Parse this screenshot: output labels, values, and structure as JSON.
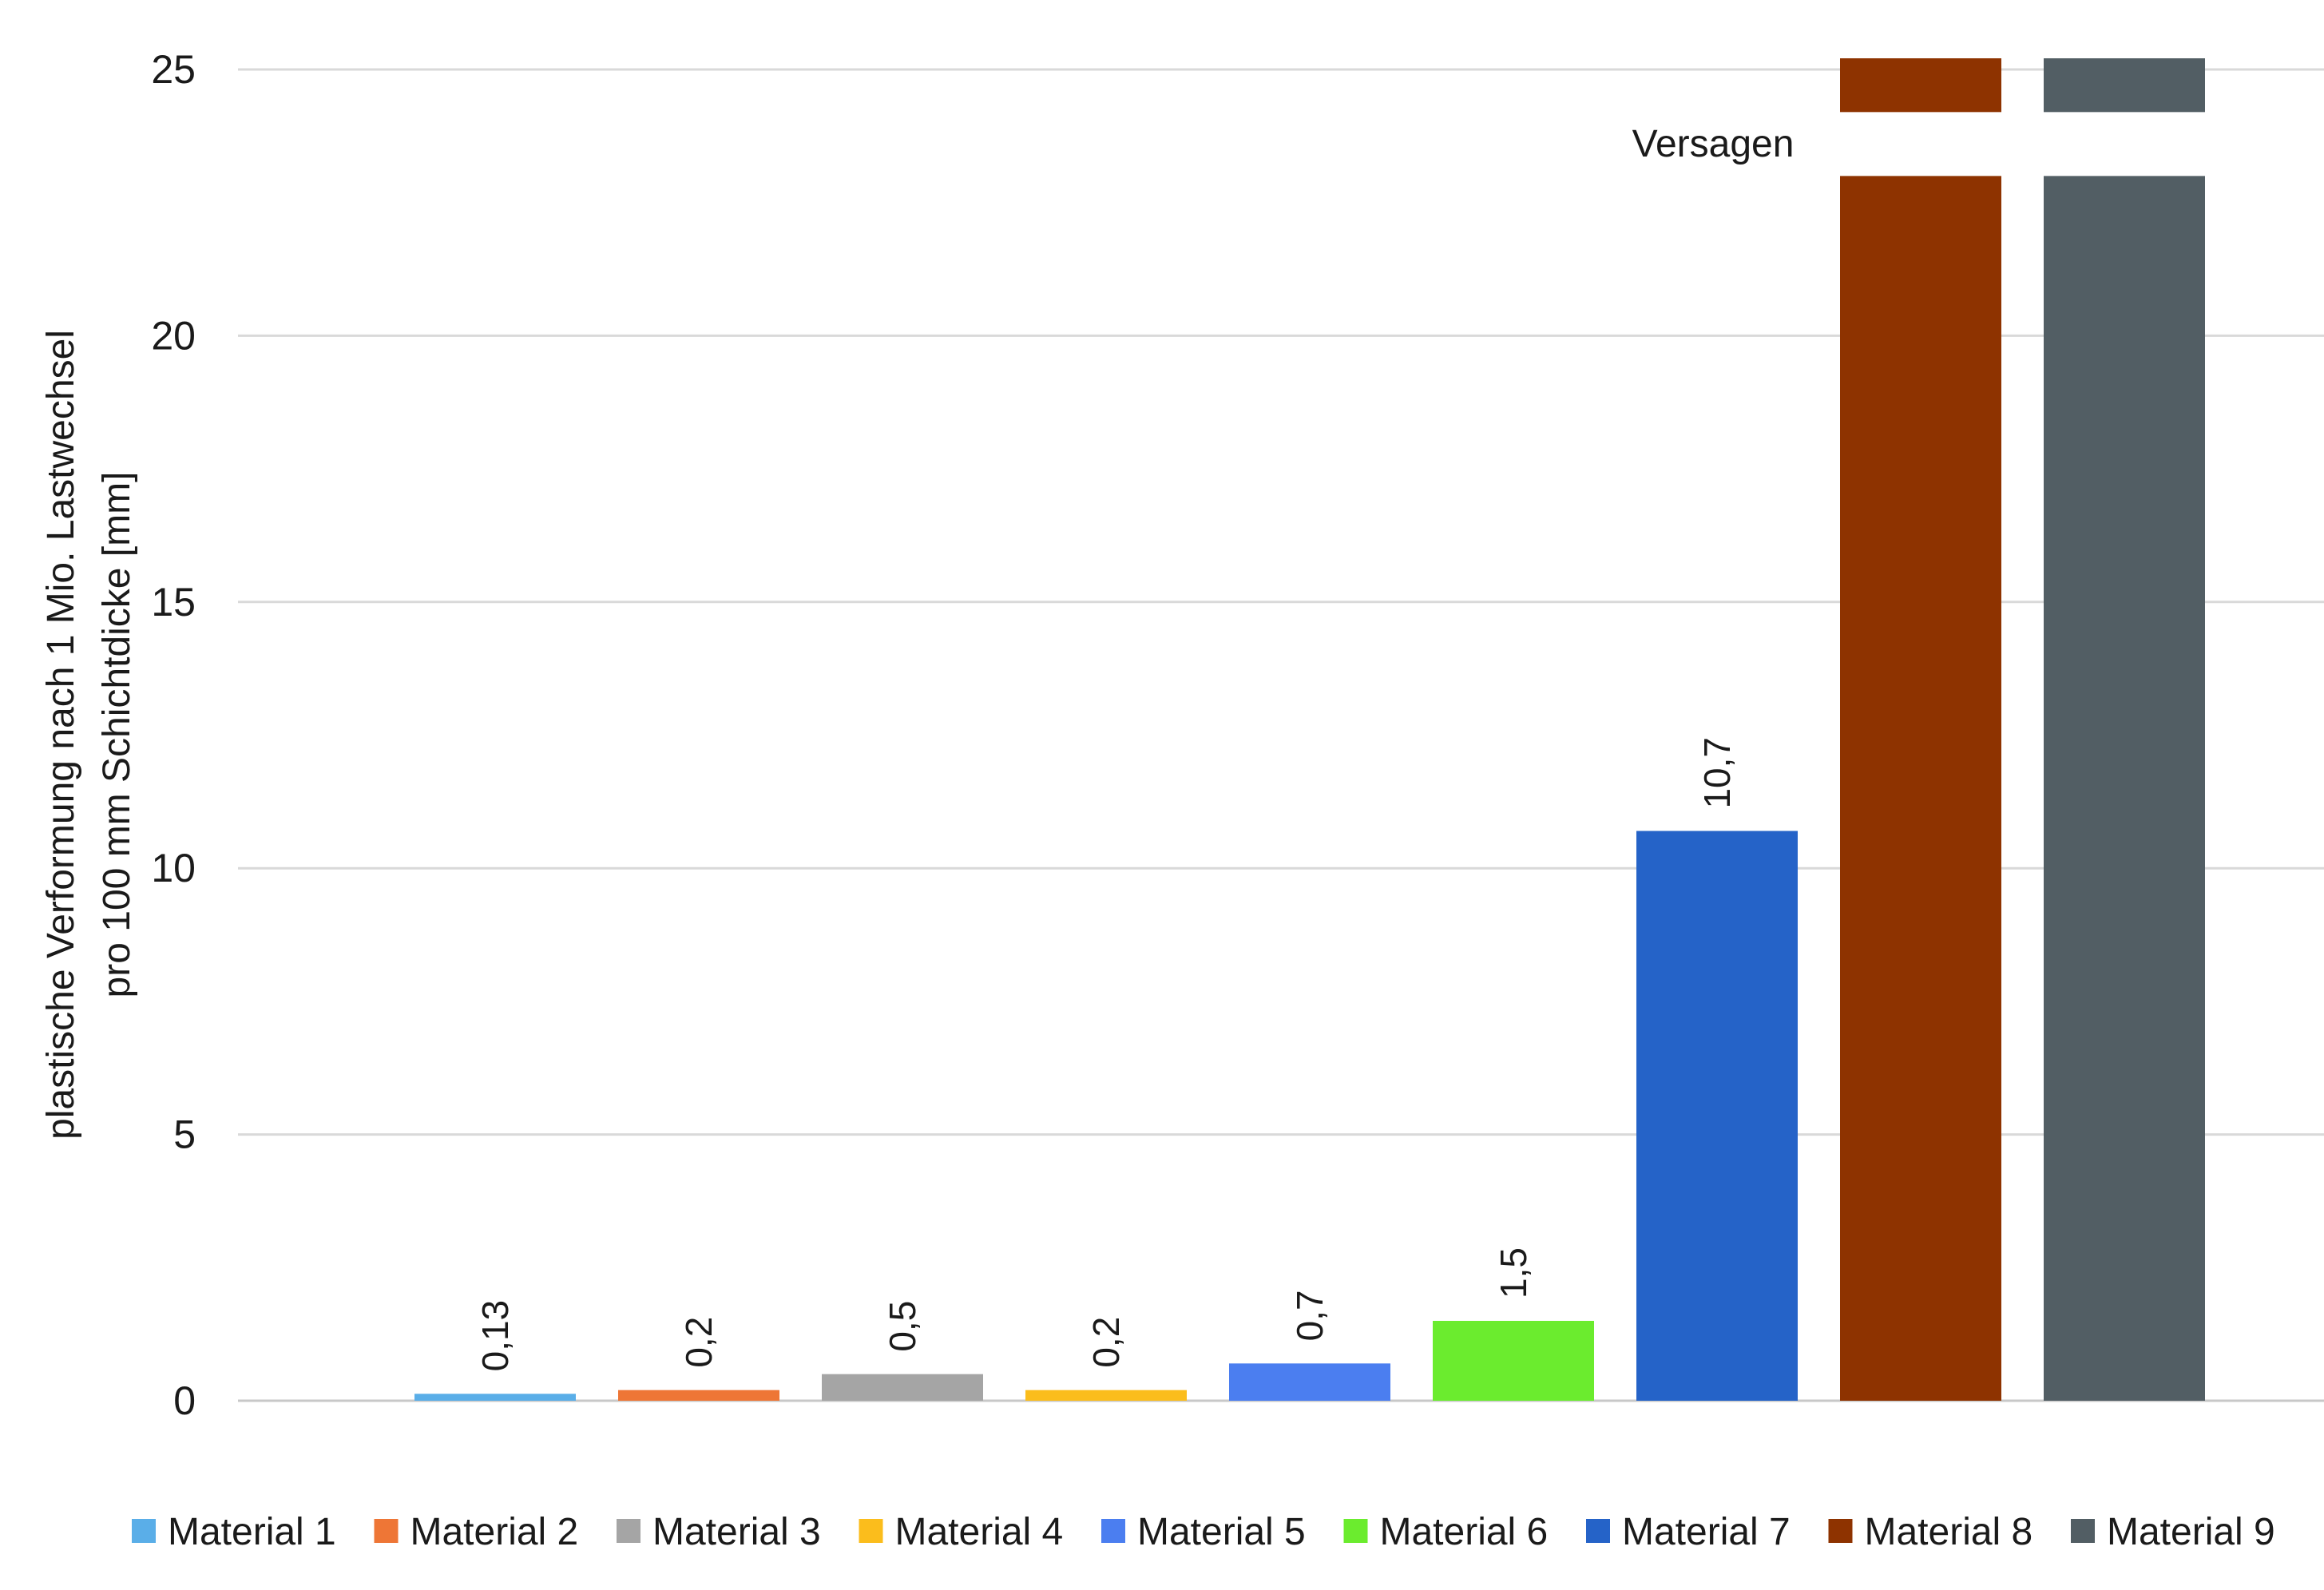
{
  "chart_data": {
    "type": "bar",
    "ylabel_lines": [
      "plastische Verformung nach 1 Mio. Lastwechsel",
      "pro 100 mm Schichtdicke [mm]"
    ],
    "ylim": [
      0,
      25
    ],
    "yticks": [
      0,
      5,
      10,
      15,
      20,
      25
    ],
    "grid": true,
    "legend_position": "bottom",
    "series": [
      {
        "name": "Material 1",
        "value": 0.13,
        "label": "0,13",
        "color": "#5aaee8"
      },
      {
        "name": "Material 2",
        "value": 0.2,
        "label": "0,2",
        "color": "#ee7636"
      },
      {
        "name": "Material 3",
        "value": 0.5,
        "label": "0,5",
        "color": "#a5a5a5"
      },
      {
        "name": "Material 4",
        "value": 0.2,
        "label": "0,2",
        "color": "#fbbd1c"
      },
      {
        "name": "Material 5",
        "value": 0.7,
        "label": "0,7",
        "color": "#4b7ef0"
      },
      {
        "name": "Material 6",
        "value": 1.5,
        "label": "1,5",
        "color": "#6bec2e"
      },
      {
        "name": "Material 7",
        "value": 10.7,
        "label": "10,7",
        "color": "#2563c8"
      },
      {
        "name": "Material 8",
        "value": 25,
        "label": "",
        "color": "#8e3300",
        "broken": true
      },
      {
        "name": "Material 9",
        "value": 25,
        "label": "",
        "color": "#525e64",
        "broken": true
      }
    ],
    "annotations": [
      {
        "text": "Versagen"
      }
    ]
  }
}
